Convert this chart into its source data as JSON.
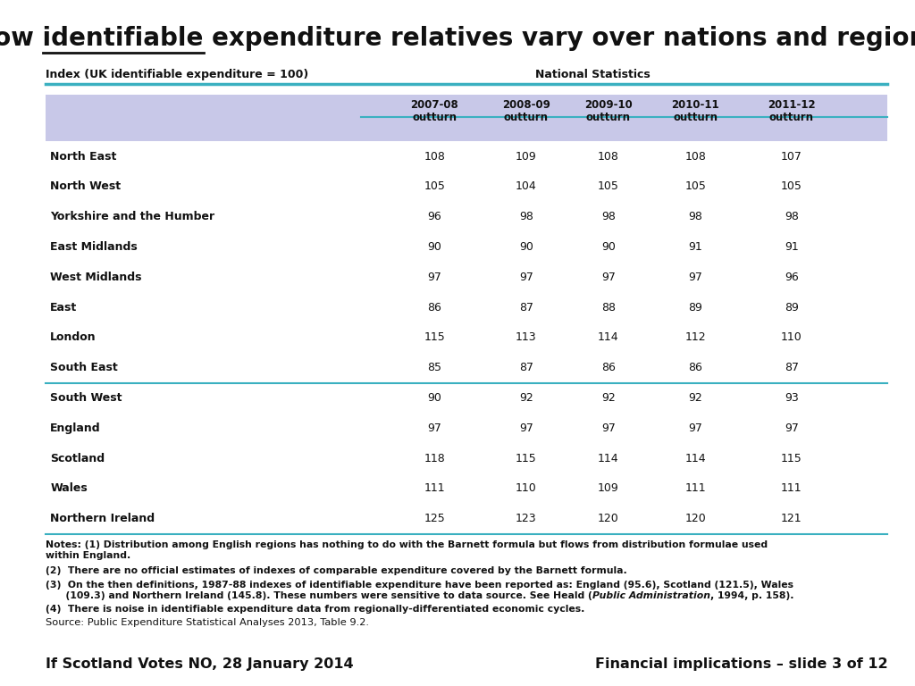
{
  "title_text": "How identifiable expenditure relatives vary over nations and regions",
  "title_underline_start": "How ",
  "title_underline_word": "identifiable",
  "subtitle_left": "Index (UK identifiable expenditure = 100)",
  "subtitle_right": "National Statistics",
  "col_headers": [
    "2007-08\noutturn",
    "2008-09\noutturn",
    "2009-10\noutturn",
    "2010-11\noutturn",
    "2011-12\noutturn"
  ],
  "rows": [
    [
      "North East",
      108,
      109,
      108,
      108,
      107
    ],
    [
      "North West",
      105,
      104,
      105,
      105,
      105
    ],
    [
      "Yorkshire and the Humber",
      96,
      98,
      98,
      98,
      98
    ],
    [
      "East Midlands",
      90,
      90,
      90,
      91,
      91
    ],
    [
      "West Midlands",
      97,
      97,
      97,
      97,
      96
    ],
    [
      "East",
      86,
      87,
      88,
      89,
      89
    ],
    [
      "London",
      115,
      113,
      114,
      112,
      110
    ],
    [
      "South East",
      85,
      87,
      86,
      86,
      87
    ],
    [
      "South West",
      90,
      92,
      92,
      92,
      93
    ],
    [
      "England",
      97,
      97,
      97,
      97,
      97
    ],
    [
      "Scotland",
      118,
      115,
      114,
      114,
      115
    ],
    [
      "Wales",
      111,
      110,
      109,
      111,
      111
    ],
    [
      "Northern Ireland",
      125,
      123,
      120,
      120,
      121
    ]
  ],
  "separator_after_row_idx": 8,
  "header_bg_color": "#c8c8e8",
  "teal_color": "#3ab0c0",
  "notes": [
    "Notes: (1) Distribution among English regions has nothing to do with the Barnett formula but flows from distribution formulae used\nwithin England.",
    "(2)  There are no official estimates of indexes of comparable expenditure covered by the Barnett formula.",
    "(3)  On the then definitions, 1987-88 indexes of identifiable expenditure have been reported as: England (95.6), Scotland (121.5), Wales\n      (109.3) and Northern Ireland (145.8). These numbers were sensitive to data source. See Heald (Public Administration, 1994, p. 158).",
    "(4)  There is noise in identifiable expenditure data from regionally-differentiated economic cycles."
  ],
  "note3_italic_word": "Public Administration",
  "source_text": "Source: Public Expenditure Statistical Analyses 2013, Table 9.2.",
  "footer_left": "If Scotland Votes NO, 28 January 2014",
  "footer_right": "Financial implications – slide 3 of 12"
}
